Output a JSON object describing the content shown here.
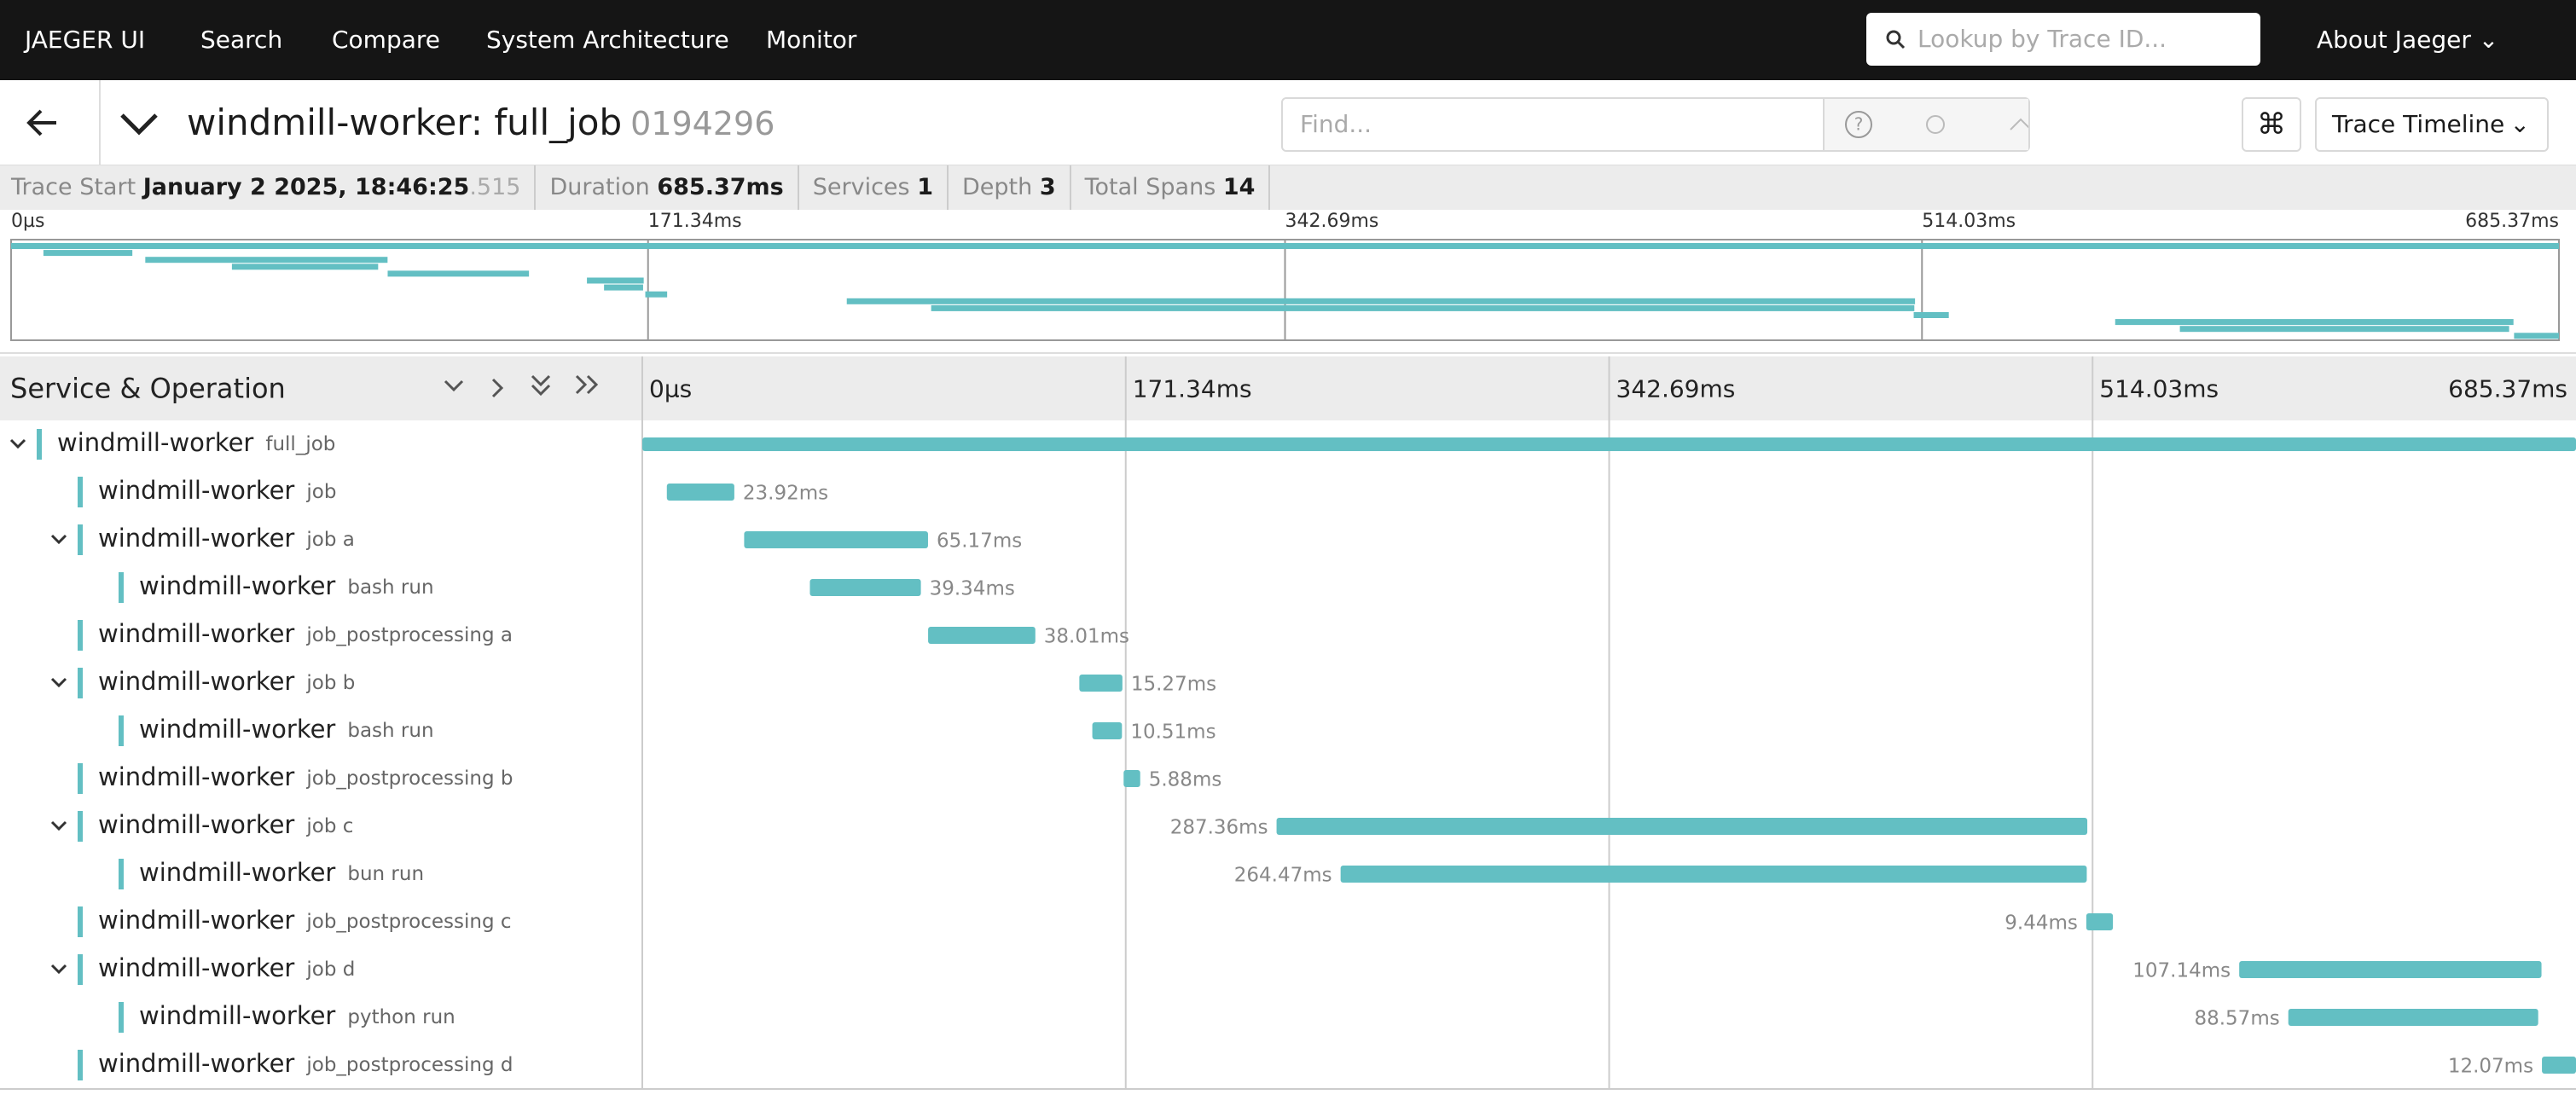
{
  "nav": {
    "brand": "JAEGER UI",
    "links": [
      "Search",
      "Compare",
      "System Architecture",
      "Monitor"
    ],
    "search_placeholder": "Lookup by Trace ID...",
    "about": "About Jaeger"
  },
  "trace": {
    "title": "windmill-worker: full_job",
    "trace_id": "0194296",
    "find_placeholder": "Find...",
    "view": "Trace Timeline"
  },
  "summary": [
    {
      "label": "Trace Start",
      "value": "January 2 2025, 18:46:25",
      "value_suffix": ".515"
    },
    {
      "label": "Duration",
      "value": "685.37ms"
    },
    {
      "label": "Services",
      "value": "1"
    },
    {
      "label": "Depth",
      "value": "3"
    },
    {
      "label": "Total Spans",
      "value": "14"
    }
  ],
  "timeline": {
    "column_title": "Service & Operation",
    "xlim": [
      0,
      685.37
    ],
    "xticks": [
      {
        "value": 0,
        "label": "0µs"
      },
      {
        "value": 171.34,
        "label": "171.34ms"
      },
      {
        "value": 342.69,
        "label": "342.69ms"
      },
      {
        "value": 514.03,
        "label": "514.03ms"
      },
      {
        "value": 685.37,
        "label": "685.37ms"
      }
    ],
    "spans": [
      {
        "service": "windmill-worker",
        "operation": "full_job",
        "depth": 0,
        "collapsible": true,
        "start": 0,
        "duration": 685.37
      },
      {
        "service": "windmill-worker",
        "operation": "job",
        "depth": 1,
        "collapsible": false,
        "start": 8.7,
        "duration": 23.92,
        "duration_label": "23.92ms"
      },
      {
        "service": "windmill-worker",
        "operation": "job a",
        "depth": 1,
        "collapsible": true,
        "start": 36.1,
        "duration": 65.17,
        "duration_label": "65.17ms"
      },
      {
        "service": "windmill-worker",
        "operation": "bash run",
        "depth": 2,
        "collapsible": false,
        "start": 59.4,
        "duration": 39.34,
        "duration_label": "39.34ms"
      },
      {
        "service": "windmill-worker",
        "operation": "job_postprocessing a",
        "depth": 1,
        "collapsible": false,
        "start": 101.3,
        "duration": 38.01,
        "duration_label": "38.01ms"
      },
      {
        "service": "windmill-worker",
        "operation": "job b",
        "depth": 1,
        "collapsible": true,
        "start": 154.9,
        "duration": 15.27,
        "duration_label": "15.27ms"
      },
      {
        "service": "windmill-worker",
        "operation": "bash run",
        "depth": 2,
        "collapsible": false,
        "start": 159.5,
        "duration": 10.51,
        "duration_label": "10.51ms"
      },
      {
        "service": "windmill-worker",
        "operation": "job_postprocessing b",
        "depth": 1,
        "collapsible": false,
        "start": 170.6,
        "duration": 5.88,
        "duration_label": "5.88ms"
      },
      {
        "service": "windmill-worker",
        "operation": "job c",
        "depth": 1,
        "collapsible": true,
        "start": 224.8,
        "duration": 287.36,
        "duration_label": "287.36ms"
      },
      {
        "service": "windmill-worker",
        "operation": "bun run",
        "depth": 2,
        "collapsible": false,
        "start": 247.5,
        "duration": 264.47,
        "duration_label": "264.47ms"
      },
      {
        "service": "windmill-worker",
        "operation": "job_postprocessing c",
        "depth": 1,
        "collapsible": false,
        "start": 511.8,
        "duration": 9.44,
        "duration_label": "9.44ms"
      },
      {
        "service": "windmill-worker",
        "operation": "job d",
        "depth": 1,
        "collapsible": true,
        "start": 566.0,
        "duration": 107.14,
        "duration_label": "107.14ms"
      },
      {
        "service": "windmill-worker",
        "operation": "python run",
        "depth": 2,
        "collapsible": false,
        "start": 583.4,
        "duration": 88.57,
        "duration_label": "88.57ms"
      },
      {
        "service": "windmill-worker",
        "operation": "job_postprocessing d",
        "depth": 1,
        "collapsible": false,
        "start": 673.3,
        "duration": 12.07,
        "duration_label": "12.07ms"
      }
    ]
  }
}
